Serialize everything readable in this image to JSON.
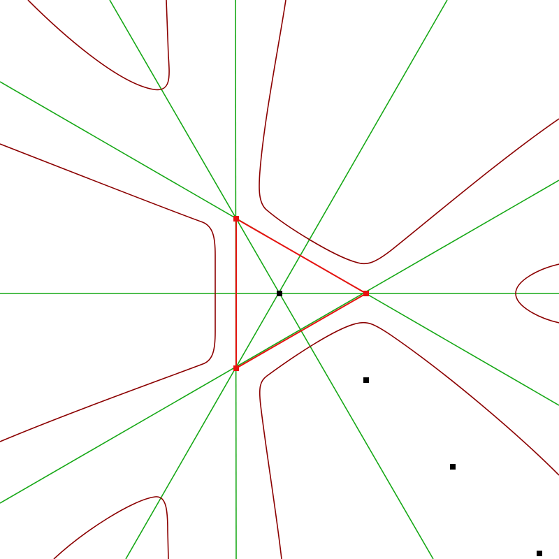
{
  "colors": {
    "background": "#ffffff",
    "guide_lines": "#16a816",
    "curves": "#8b0000",
    "triangle": "#e81010",
    "points": "#000000"
  }
}
